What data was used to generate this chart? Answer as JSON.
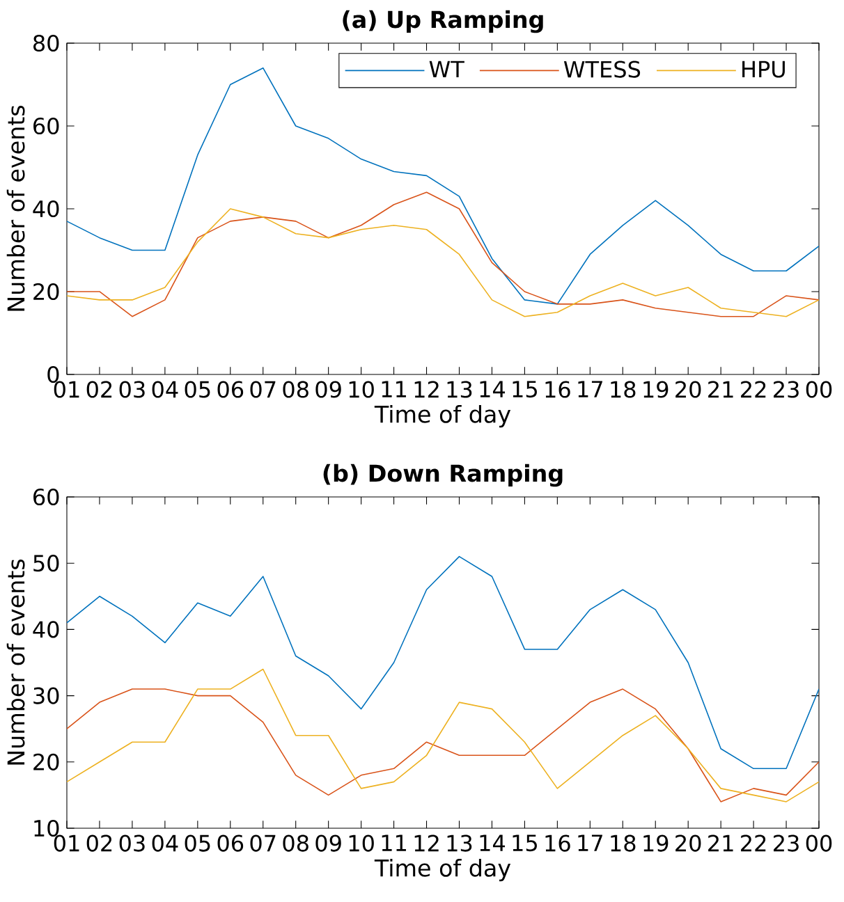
{
  "chart_data": [
    {
      "type": "line",
      "title": "(a) Up Ramping",
      "xlabel": "Time of day",
      "ylabel": "Number of events",
      "categories": [
        "01",
        "02",
        "03",
        "04",
        "05",
        "06",
        "07",
        "08",
        "09",
        "10",
        "11",
        "12",
        "13",
        "14",
        "15",
        "16",
        "17",
        "18",
        "19",
        "20",
        "21",
        "22",
        "23",
        "00"
      ],
      "ylim": [
        0,
        80
      ],
      "yticks": [
        0,
        20,
        40,
        60,
        80
      ],
      "legend": "top right",
      "series": [
        {
          "name": "WT",
          "color": "#0072bd",
          "values": [
            37,
            33,
            30,
            30,
            53,
            70,
            74,
            60,
            57,
            52,
            49,
            48,
            43,
            28,
            18,
            17,
            29,
            36,
            42,
            36,
            29,
            25,
            25,
            31
          ]
        },
        {
          "name": "WTESS",
          "color": "#d95319",
          "values": [
            20,
            20,
            14,
            18,
            33,
            37,
            38,
            37,
            33,
            36,
            41,
            44,
            40,
            27,
            20,
            17,
            17,
            18,
            16,
            15,
            14,
            14,
            19,
            18
          ]
        },
        {
          "name": "HPU",
          "color": "#edb120",
          "values": [
            19,
            18,
            18,
            21,
            32,
            40,
            38,
            34,
            33,
            35,
            36,
            35,
            29,
            18,
            14,
            15,
            19,
            22,
            19,
            21,
            16,
            15,
            14,
            18
          ]
        }
      ]
    },
    {
      "type": "line",
      "title": "(b) Down Ramping",
      "xlabel": "Time of day",
      "ylabel": "Number of events",
      "categories": [
        "01",
        "02",
        "03",
        "04",
        "05",
        "06",
        "07",
        "08",
        "09",
        "10",
        "11",
        "12",
        "13",
        "14",
        "15",
        "16",
        "17",
        "18",
        "19",
        "20",
        "21",
        "22",
        "23",
        "00"
      ],
      "ylim": [
        10,
        60
      ],
      "yticks": [
        10,
        20,
        30,
        40,
        50,
        60
      ],
      "series": [
        {
          "color": "#0072bd",
          "values": [
            41,
            45,
            42,
            38,
            44,
            42,
            48,
            36,
            33,
            28,
            35,
            46,
            51,
            48,
            37,
            37,
            43,
            46,
            43,
            35,
            22,
            19,
            19,
            31
          ]
        },
        {
          "color": "#d95319",
          "values": [
            25,
            29,
            31,
            31,
            30,
            30,
            26,
            18,
            15,
            18,
            19,
            23,
            21,
            21,
            21,
            25,
            29,
            31,
            28,
            22,
            14,
            16,
            15,
            20
          ]
        },
        {
          "color": "#edb120",
          "values": [
            17,
            20,
            23,
            23,
            31,
            31,
            34,
            24,
            24,
            16,
            17,
            21,
            29,
            28,
            23,
            16,
            20,
            24,
            27,
            22,
            16,
            15,
            14,
            17
          ]
        }
      ]
    }
  ]
}
